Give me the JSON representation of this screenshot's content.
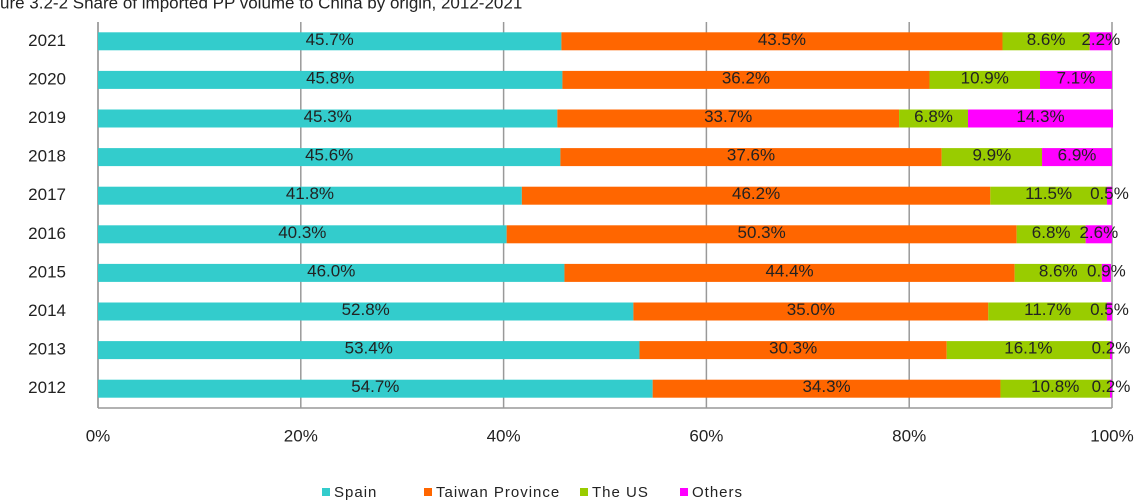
{
  "chart_data": {
    "type": "stacked_barh",
    "title": "ure 3.2-2 Share of imported PP volume to China by origin, 2012-2021",
    "categories": [
      "2021",
      "2020",
      "2019",
      "2018",
      "2017",
      "2016",
      "2015",
      "2014",
      "2013",
      "2012"
    ],
    "series": [
      {
        "name": "Spain",
        "color": "#33cccc",
        "values": [
          45.7,
          45.8,
          45.3,
          45.6,
          41.8,
          40.3,
          46.0,
          52.8,
          53.4,
          54.7
        ],
        "value_labels": [
          "45.7%",
          "45.8%",
          "45.3%",
          "45.6%",
          "41.8%",
          "40.3%",
          "46.0%",
          "52.8%",
          "53.4%",
          "54.7%"
        ]
      },
      {
        "name": "Taiwan Province",
        "color": "#ff6600",
        "values": [
          43.5,
          36.2,
          33.7,
          37.6,
          46.2,
          50.3,
          44.4,
          35.0,
          30.3,
          34.3
        ],
        "value_labels": [
          "43.5%",
          "36.2%",
          "33.7%",
          "37.6%",
          "46.2%",
          "50.3%",
          "44.4%",
          "35.0%",
          "30.3%",
          "34.3%"
        ]
      },
      {
        "name": "The US",
        "color": "#99cc00",
        "values": [
          8.6,
          10.9,
          6.8,
          9.9,
          11.5,
          6.8,
          8.6,
          11.7,
          16.1,
          10.8
        ],
        "value_labels": [
          "8.6%",
          "10.9%",
          "6.8%",
          "9.9%",
          "11.5%",
          "6.8%",
          "8.6%",
          "11.7%",
          "16.1%",
          "10.8%"
        ]
      },
      {
        "name": "Others",
        "color": "#ff00ff",
        "values": [
          2.2,
          7.1,
          14.3,
          6.9,
          0.5,
          2.6,
          0.9,
          0.5,
          0.2,
          0.2
        ],
        "value_labels": [
          "2.2%",
          "7.1%",
          "14.3%",
          "6.9%",
          "0.5%",
          "2.6%",
          "0.9%",
          "0.5%",
          "0.2%",
          "0.2%"
        ]
      }
    ],
    "xlim": [
      0,
      100
    ],
    "xticks": [
      {
        "value": 0,
        "label": "0%"
      },
      {
        "value": 20,
        "label": "20%"
      },
      {
        "value": 40,
        "label": "40%"
      },
      {
        "value": 60,
        "label": "60%"
      },
      {
        "value": 80,
        "label": "80%"
      },
      {
        "value": 100,
        "label": "100%"
      }
    ],
    "grid": true,
    "legend": "bottom"
  }
}
